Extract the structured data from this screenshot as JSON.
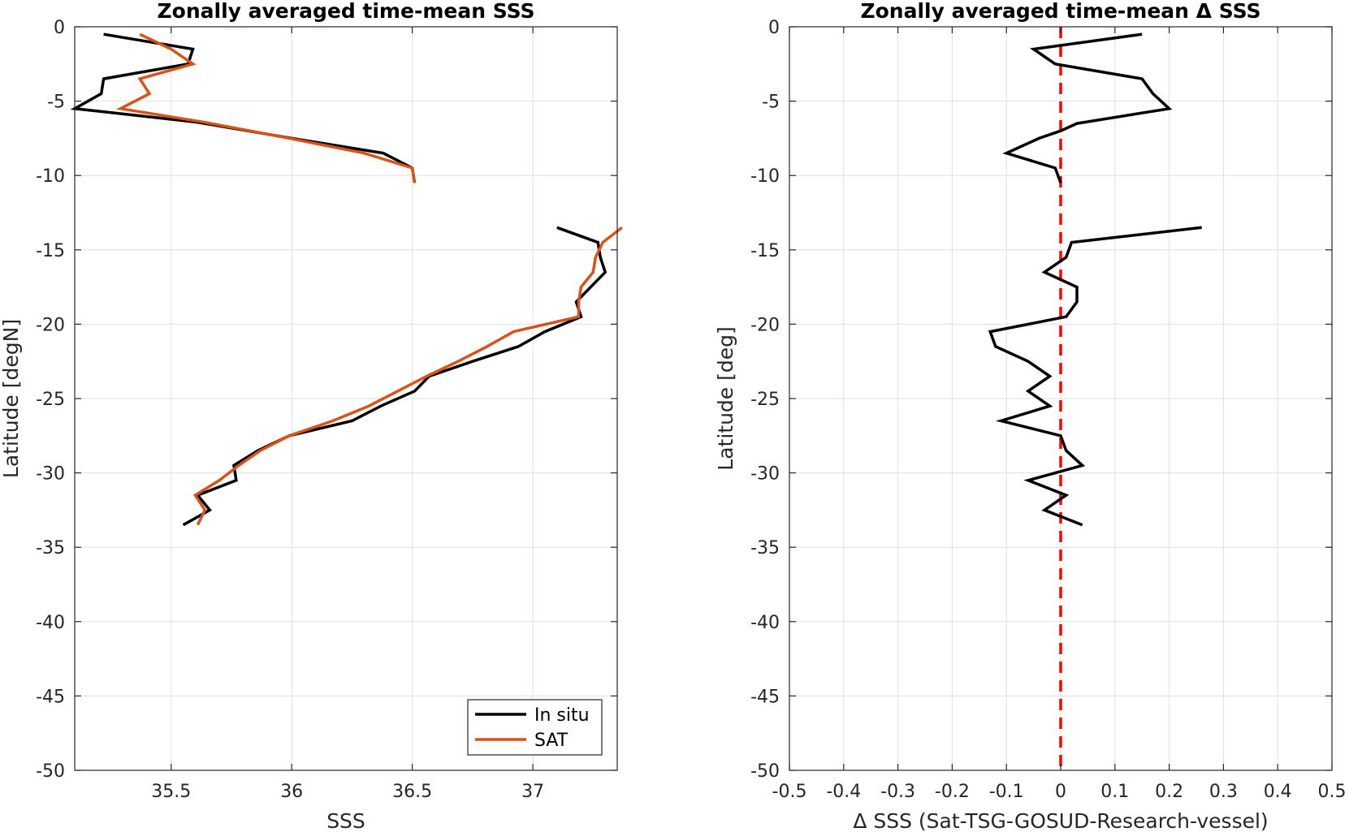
{
  "chart_data": [
    {
      "type": "line",
      "title": "Zonally averaged time-mean SSS",
      "xlabel": "SSS",
      "ylabel": "Latitude [degN]",
      "xlim": [
        35.1,
        37.35
      ],
      "ylim": [
        -50,
        0
      ],
      "xticks": [
        "35.5",
        "36",
        "36.5",
        "37"
      ],
      "yticks": [
        "0",
        "-5",
        "-10",
        "-15",
        "-20",
        "-25",
        "-30",
        "-35",
        "-40",
        "-45",
        "-50"
      ],
      "grid": true,
      "legend": "bottom-right",
      "series": [
        {
          "name": "In situ",
          "color": "#000000",
          "segments": [
            [
              [
                35.22,
                -0.5
              ],
              [
                35.59,
                -1.5
              ],
              [
                35.57,
                -2.5
              ],
              [
                35.22,
                -3.5
              ],
              [
                35.21,
                -4.5
              ],
              [
                35.1,
                -5.5
              ],
              [
                35.6,
                -6.4
              ],
              [
                36.0,
                -7.5
              ],
              [
                36.38,
                -8.5
              ],
              [
                36.5,
                -9.5
              ],
              [
                36.51,
                -10.5
              ]
            ],
            [
              [
                37.1,
                -13.5
              ],
              [
                37.27,
                -14.5
              ],
              [
                37.28,
                -15.5
              ],
              [
                37.3,
                -16.5
              ],
              [
                37.24,
                -17.5
              ],
              [
                37.18,
                -18.5
              ],
              [
                37.2,
                -19.5
              ],
              [
                37.05,
                -20.5
              ],
              [
                36.94,
                -21.5
              ],
              [
                36.75,
                -22.5
              ],
              [
                36.57,
                -23.5
              ],
              [
                36.51,
                -24.5
              ],
              [
                36.37,
                -25.5
              ],
              [
                36.25,
                -26.5
              ],
              [
                35.99,
                -27.5
              ],
              [
                35.86,
                -28.5
              ],
              [
                35.76,
                -29.5
              ],
              [
                35.77,
                -30.5
              ],
              [
                35.61,
                -31.5
              ],
              [
                35.66,
                -32.5
              ],
              [
                35.55,
                -33.5
              ]
            ]
          ]
        },
        {
          "name": "SAT",
          "color": "#d95319",
          "segments": [
            [
              [
                35.37,
                -0.5
              ],
              [
                35.5,
                -1.5
              ],
              [
                35.59,
                -2.5
              ],
              [
                35.37,
                -3.5
              ],
              [
                35.41,
                -4.5
              ],
              [
                35.29,
                -5.5
              ],
              [
                35.63,
                -6.4
              ],
              [
                35.99,
                -7.5
              ],
              [
                36.3,
                -8.5
              ],
              [
                36.5,
                -9.5
              ],
              [
                36.51,
                -10.5
              ]
            ],
            [
              [
                37.37,
                -13.5
              ],
              [
                37.29,
                -14.5
              ],
              [
                37.26,
                -15.5
              ],
              [
                37.25,
                -16.5
              ],
              [
                37.2,
                -17.5
              ],
              [
                37.19,
                -18.5
              ],
              [
                37.19,
                -19.5
              ],
              [
                36.92,
                -20.5
              ],
              [
                36.81,
                -21.5
              ],
              [
                36.69,
                -22.5
              ],
              [
                36.56,
                -23.5
              ],
              [
                36.44,
                -24.5
              ],
              [
                36.32,
                -25.5
              ],
              [
                36.17,
                -26.5
              ],
              [
                35.99,
                -27.5
              ],
              [
                35.87,
                -28.5
              ],
              [
                35.78,
                -29.5
              ],
              [
                35.7,
                -30.5
              ],
              [
                35.6,
                -31.5
              ],
              [
                35.64,
                -32.5
              ],
              [
                35.61,
                -33.5
              ]
            ]
          ]
        }
      ]
    },
    {
      "type": "line",
      "title": "Zonally averaged time-mean Δ SSS",
      "xlabel": "Δ SSS (Sat-TSG-GOSUD-Research-vessel)",
      "ylabel": "Latitude [deg]",
      "xlim": [
        -0.5,
        0.5
      ],
      "ylim": [
        -50,
        0
      ],
      "xticks": [
        "-0.5",
        "-0.4",
        "-0.3",
        "-0.2",
        "-0.1",
        "0",
        "0.1",
        "0.2",
        "0.3",
        "0.4",
        "0.5"
      ],
      "yticks": [
        "0",
        "-5",
        "-10",
        "-15",
        "-20",
        "-25",
        "-30",
        "-35",
        "-40",
        "-45",
        "-50"
      ],
      "grid": true,
      "zero_line": {
        "x": 0,
        "color": "#ff0000",
        "style": "dashed"
      },
      "series": [
        {
          "color": "#000000",
          "segments": [
            [
              [
                0.15,
                -0.5
              ],
              [
                -0.05,
                -1.5
              ],
              [
                -0.01,
                -2.5
              ],
              [
                0.15,
                -3.5
              ],
              [
                0.17,
                -4.5
              ],
              [
                0.2,
                -5.5
              ],
              [
                0.03,
                -6.5
              ],
              [
                0,
                -7
              ],
              [
                -0.04,
                -7.5
              ],
              [
                -0.1,
                -8.5
              ],
              [
                -0.01,
                -9.5
              ],
              [
                0,
                -10.5
              ]
            ],
            [
              [
                0.26,
                -13.5
              ],
              [
                0.02,
                -14.5
              ],
              [
                0.01,
                -15.5
              ],
              [
                -0.03,
                -16.5
              ],
              [
                0.03,
                -17.5
              ],
              [
                0.03,
                -18.5
              ],
              [
                0.01,
                -19.5
              ],
              [
                -0.13,
                -20.5
              ],
              [
                -0.12,
                -21.5
              ],
              [
                -0.06,
                -22.5
              ],
              [
                -0.02,
                -23.5
              ],
              [
                -0.06,
                -24.5
              ],
              [
                -0.02,
                -25.5
              ],
              [
                -0.11,
                -26.5
              ],
              [
                0,
                -27.5
              ],
              [
                0.01,
                -28.5
              ],
              [
                0.04,
                -29.5
              ],
              [
                -0.06,
                -30.5
              ],
              [
                0.01,
                -31.5
              ],
              [
                -0.03,
                -32.5
              ],
              [
                0.04,
                -33.5
              ]
            ]
          ]
        }
      ]
    }
  ],
  "legend_items": [
    "In situ",
    "SAT"
  ]
}
